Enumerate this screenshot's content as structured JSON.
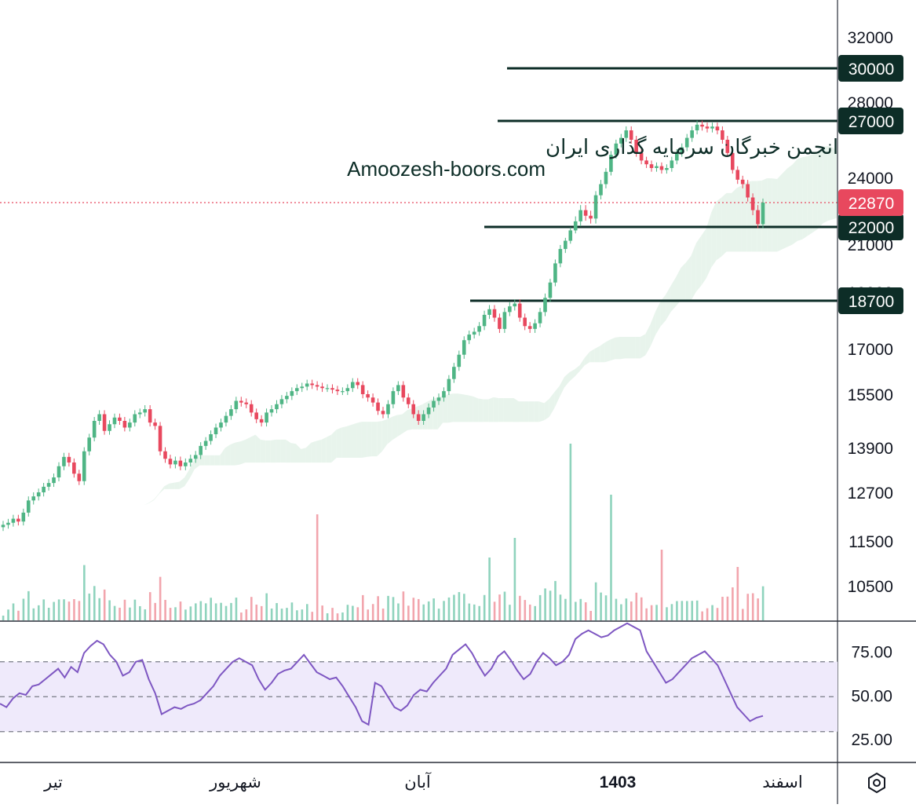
{
  "watermark": {
    "line1": "انجمن خبرگان سرمایه گذاری ایران",
    "line2": "Amoozesh-boors.com"
  },
  "colors": {
    "up": "#4fb585",
    "down": "#e8485e",
    "volume_up": "#8fd3bd",
    "volume_down": "#f2a5ad",
    "level_line": "#0d2d27",
    "level_label_bg": "#0d2d27",
    "last_price_bg": "#e8485e",
    "cloud_bull": "#e8f4ec",
    "cloud_bear": "#fbe3e4",
    "rsi_line": "#7e57c2",
    "rsi_band": "#efeafb",
    "grid_text": "#131722"
  },
  "chart_data": [
    {
      "type": "candlestick",
      "price_axis_ticks": [
        "32000",
        "28000",
        "24000",
        "21000",
        "19000",
        "17000",
        "15500",
        "13900",
        "12700",
        "11500",
        "10500"
      ],
      "time_axis_labels": [
        "تیر",
        "شهریور",
        "آبان",
        "1403",
        "اسفند"
      ],
      "last_price": "22870",
      "horizontal_levels": [
        "30000",
        "27000",
        "22000",
        "18700"
      ],
      "volume_shown": true,
      "ichimoku_cloud_shown": true,
      "series": [
        {
          "name": "",
          "close": [
            11900,
            11950,
            12050,
            11980,
            12200,
            12500,
            12600,
            12700,
            12850,
            12950,
            13100,
            13400,
            13650,
            13500,
            13200,
            13000,
            13800,
            14200,
            14700,
            14900,
            14400,
            14600,
            14800,
            14700,
            14500,
            14650,
            14900,
            14950,
            15050,
            14650,
            14550,
            13800,
            13600,
            13450,
            13550,
            13400,
            13500,
            13600,
            13700,
            13950,
            14100,
            14300,
            14500,
            14650,
            14850,
            15050,
            15300,
            15250,
            15200,
            14950,
            14750,
            14650,
            14950,
            15050,
            15200,
            15350,
            15450,
            15600,
            15700,
            15750,
            15850,
            15800,
            15750,
            15700,
            15700,
            15650,
            15600,
            15600,
            15700,
            15900,
            15800,
            15500,
            15400,
            15250,
            15000,
            14900,
            15200,
            15600,
            15800,
            15400,
            15200,
            14900,
            14700,
            14900,
            15100,
            15300,
            15400,
            15600,
            16000,
            16400,
            16800,
            17300,
            17500,
            17600,
            17800,
            18200,
            18400,
            18100,
            17700,
            18300,
            18500,
            18600,
            18100,
            17800,
            17700,
            17900,
            18300,
            18800,
            19400,
            20200,
            20800,
            21200,
            21800,
            22200,
            22600,
            22400,
            22300,
            23200,
            23700,
            24300,
            25200,
            25800,
            26100,
            26500,
            26000,
            25300,
            24900,
            24700,
            24500,
            24600,
            24400,
            24500,
            24900,
            25300,
            25600,
            26100,
            26500,
            26800,
            26700,
            26600,
            26700,
            26500,
            26000,
            25300,
            24400,
            23900,
            23700,
            23100,
            22600,
            22100,
            22870
          ]
        }
      ],
      "title": "",
      "xlabel": "",
      "ylabel": ""
    },
    {
      "type": "line",
      "indicator": "RSI",
      "axis_ticks": [
        "75.00",
        "50.00",
        "25.00"
      ],
      "band": [
        30,
        70
      ],
      "ylim": [
        20,
        100
      ],
      "series": [
        {
          "name": "",
          "values": [
            46,
            44,
            49,
            52,
            51,
            56,
            57,
            60,
            63,
            66,
            61,
            67,
            64,
            75,
            79,
            82,
            80,
            74,
            70,
            62,
            64,
            70,
            71,
            60,
            52,
            40,
            42,
            44,
            43,
            45,
            46,
            48,
            52,
            56,
            62,
            66,
            70,
            72,
            70,
            68,
            60,
            54,
            58,
            63,
            65,
            66,
            70,
            74,
            69,
            64,
            62,
            60,
            61,
            56,
            50,
            44,
            36,
            34,
            58,
            56,
            50,
            44,
            42,
            45,
            51,
            54,
            53,
            58,
            62,
            66,
            74,
            77,
            80,
            75,
            68,
            62,
            66,
            73,
            76,
            71,
            65,
            60,
            63,
            70,
            75,
            72,
            68,
            70,
            74,
            83,
            86,
            88,
            86,
            84,
            85,
            88,
            90,
            92,
            90,
            88,
            76,
            70,
            64,
            58,
            60,
            64,
            68,
            72,
            74,
            76,
            72,
            68,
            60,
            52,
            44,
            40,
            36,
            38,
            39
          ]
        }
      ]
    }
  ]
}
